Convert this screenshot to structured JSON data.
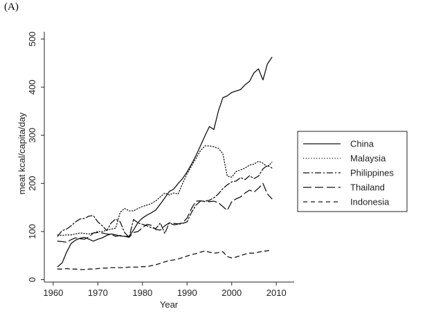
{
  "panel_label": "(A)",
  "chart_data": {
    "type": "line",
    "title": "",
    "xlabel": "Year",
    "ylabel": "meat kcal/capita/day",
    "xlim": [
      1958,
      2014
    ],
    "ylim": [
      -5,
      515
    ],
    "xticks": [
      1960,
      1970,
      1980,
      1990,
      2000,
      2010
    ],
    "yticks": [
      0,
      100,
      200,
      300,
      400,
      500
    ],
    "grid": false,
    "legend_position": "right",
    "x": [
      1961,
      1962,
      1963,
      1964,
      1965,
      1966,
      1967,
      1968,
      1969,
      1970,
      1971,
      1972,
      1973,
      1974,
      1975,
      1976,
      1977,
      1978,
      1979,
      1980,
      1981,
      1982,
      1983,
      1984,
      1985,
      1986,
      1987,
      1988,
      1989,
      1990,
      1991,
      1992,
      1993,
      1994,
      1995,
      1996,
      1997,
      1998,
      1999,
      2000,
      2001,
      2002,
      2003,
      2004,
      2005,
      2006,
      2007,
      2008,
      2009
    ],
    "series": [
      {
        "name": "China",
        "dash": "solid",
        "values": [
          27,
          35,
          57,
          75,
          82,
          86,
          88,
          84,
          80,
          84,
          87,
          92,
          95,
          93,
          91,
          90,
          90,
          103,
          119,
          128,
          134,
          139,
          145,
          157,
          170,
          183,
          188,
          200,
          210,
          224,
          240,
          258,
          278,
          299,
          318,
          312,
          350,
          378,
          382,
          389,
          392,
          395,
          405,
          412,
          430,
          438,
          415,
          448,
          462
        ]
      },
      {
        "name": "Malaysia",
        "dash": "dotted",
        "values": [
          93,
          92,
          93,
          93,
          95,
          97,
          96,
          95,
          97,
          100,
          100,
          103,
          105,
          107,
          140,
          148,
          143,
          143,
          148,
          152,
          155,
          158,
          164,
          172,
          180,
          176,
          180,
          178,
          200,
          220,
          236,
          252,
          268,
          278,
          278,
          276,
          273,
          262,
          215,
          213,
          225,
          228,
          232,
          238,
          240,
          246,
          242,
          234,
          244
        ]
      },
      {
        "name": "Philippines",
        "dash": "dashdot",
        "values": [
          90,
          102,
          105,
          112,
          120,
          126,
          127,
          132,
          133,
          120,
          112,
          102,
          118,
          126,
          120,
          98,
          88,
          125,
          118,
          115,
          112,
          108,
          106,
          118,
          96,
          118,
          114,
          115,
          117,
          120,
          140,
          155,
          163,
          163,
          165,
          170,
          178,
          189,
          197,
          203,
          205,
          212,
          208,
          216,
          210,
          215,
          230,
          238,
          232
        ]
      },
      {
        "name": "Thailand",
        "dash": "longdash",
        "values": [
          80,
          79,
          78,
          83,
          87,
          85,
          84,
          89,
          97,
          98,
          97,
          95,
          94,
          90,
          92,
          90,
          88,
          98,
          100,
          108,
          115,
          113,
          104,
          103,
          112,
          118,
          117,
          116,
          118,
          128,
          148,
          163,
          164,
          162,
          162,
          163,
          160,
          152,
          144,
          162,
          168,
          172,
          180,
          186,
          182,
          190,
          200,
          178,
          168
        ]
      },
      {
        "name": "Indonesia",
        "dash": "shortdash",
        "values": [
          22,
          22,
          23,
          22,
          22,
          21,
          21,
          22,
          22,
          23,
          24,
          24,
          25,
          25,
          25,
          25,
          26,
          26,
          26,
          27,
          27,
          29,
          31,
          34,
          37,
          40,
          41,
          43,
          46,
          49,
          52,
          54,
          57,
          60,
          57,
          55,
          56,
          58,
          48,
          45,
          47,
          50,
          53,
          55,
          55,
          57,
          59,
          60,
          62
        ]
      }
    ]
  }
}
